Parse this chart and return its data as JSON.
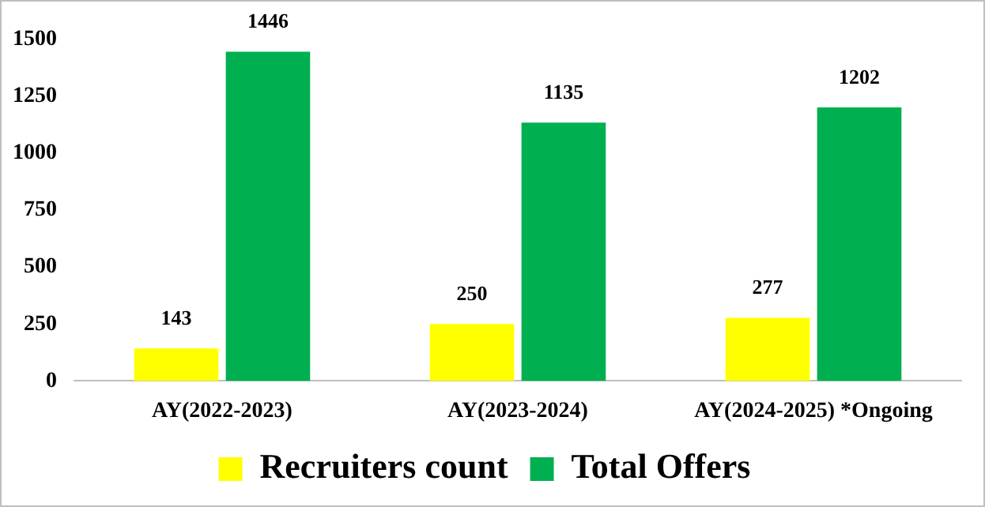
{
  "chart_data": {
    "type": "bar",
    "categories": [
      "AY(2022-2023)",
      "AY(2023-2024)",
      "AY(2024-2025) *Ongoing"
    ],
    "series": [
      {
        "name": "Recruiters count",
        "color": "#ffff00",
        "values": [
          143,
          250,
          277
        ]
      },
      {
        "name": "Total Offers",
        "color": "#00b050",
        "values": [
          1446,
          1135,
          1202
        ]
      }
    ],
    "ylim": [
      0,
      1500
    ],
    "yticks": [
      0,
      250,
      500,
      750,
      1000,
      1250,
      1500
    ],
    "grid": false,
    "legend": "bottom",
    "data_labels": true
  }
}
